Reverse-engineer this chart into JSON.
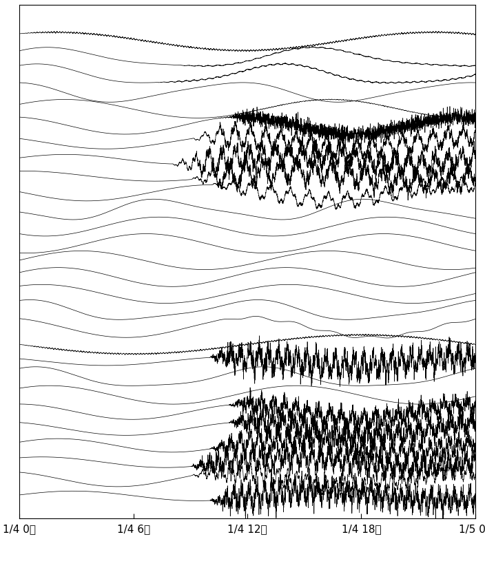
{
  "x_labels": [
    "1/4 0時",
    "1/4 6時",
    "1/4 12時",
    "1/4 18時",
    "1/5 0時"
  ],
  "x_ticks": [
    0,
    6,
    12,
    18,
    24
  ],
  "xlim": [
    0,
    24
  ],
  "background_color": "#ffffff",
  "line_color": "#000000",
  "n_traces": 28,
  "hours": 24,
  "sample_rate": 200
}
